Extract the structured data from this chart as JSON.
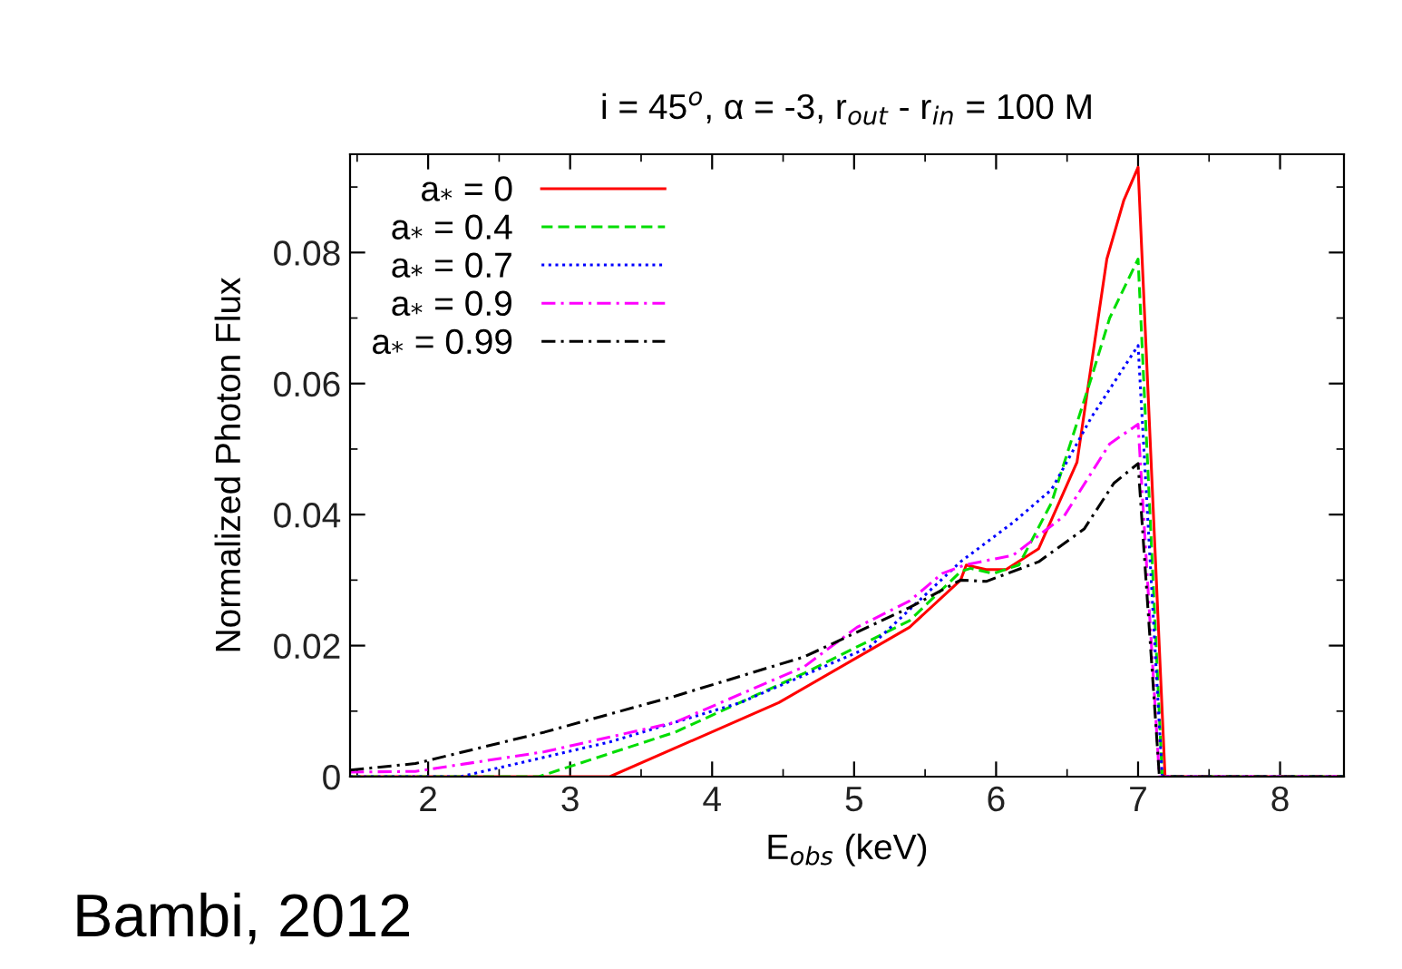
{
  "chart_data": {
    "type": "line",
    "title": "i = 45$^{o}$, α = -3, r$_{out}$ - r$_{in}$ = 100 M",
    "xlabel": "E$_{obs}$ (keV)",
    "ylabel": "Normalized Photon Flux",
    "xlim": [
      1.45,
      8.45
    ],
    "xticks": [
      2,
      3,
      4,
      5,
      6,
      7,
      8
    ],
    "ylim": [
      0,
      0.095
    ],
    "yticks": [
      {
        "value": 0,
        "label": "0"
      },
      0.02,
      0.04,
      0.06,
      0.08
    ],
    "grid": false,
    "legend": "top left",
    "annotations": [
      "Bambi, 2012"
    ],
    "series": [
      {
        "name": "a$_{*}$ = 0",
        "color": "#ff0000",
        "line_style": "solid",
        "x": [
          1.45,
          3.28,
          4.47,
          5.39,
          5.75,
          5.79,
          5.93,
          6.07,
          6.3,
          6.57,
          6.78,
          6.9,
          7.0,
          7.19,
          8.45
        ],
        "values": [
          0,
          0,
          0.0113,
          0.0228,
          0.03,
          0.0323,
          0.0316,
          0.0316,
          0.0348,
          0.048,
          0.079,
          0.088,
          0.093,
          0,
          0
        ]
      },
      {
        "name": "a$_{*}$ = 0.4",
        "color": "#00dd00",
        "line_style": "dashed",
        "x": [
          1.45,
          2.78,
          3.74,
          4.65,
          5.39,
          5.75,
          5.82,
          5.98,
          6.16,
          6.39,
          6.67,
          6.8,
          7.0,
          7.17,
          8.45
        ],
        "values": [
          0,
          0,
          0.0068,
          0.0158,
          0.0238,
          0.0313,
          0.0318,
          0.031,
          0.0323,
          0.0418,
          0.0608,
          0.07,
          0.079,
          0,
          0
        ]
      },
      {
        "name": "a$_{*}$ = 0.7",
        "color": "#0000ff",
        "line_style": "dotted",
        "x": [
          1.45,
          2.23,
          3.28,
          4.2,
          5.11,
          5.75,
          6.12,
          6.39,
          6.67,
          7.0,
          7.17,
          8.45
        ],
        "values": [
          0,
          0,
          0.0053,
          0.0113,
          0.0198,
          0.0328,
          0.0388,
          0.0438,
          0.0548,
          0.0658,
          0,
          0
        ]
      },
      {
        "name": "a$_{*}$ = 0.9",
        "color": "#ff00ff",
        "line_style": "dashdot",
        "x": [
          1.45,
          1.91,
          2.82,
          3.74,
          4.65,
          5.02,
          5.39,
          5.62,
          5.78,
          5.89,
          6.12,
          6.48,
          6.8,
          7.0,
          7.15,
          8.45
        ],
        "values": [
          0.0007,
          0.0008,
          0.0038,
          0.0083,
          0.0168,
          0.0228,
          0.0268,
          0.031,
          0.0323,
          0.0328,
          0.0338,
          0.0398,
          0.0508,
          0.0538,
          0,
          0
        ]
      },
      {
        "name": "a$_{*}$ = 0.99",
        "color": "#000000",
        "line_style": "dashdot",
        "x": [
          1.45,
          1.91,
          2.82,
          3.74,
          4.65,
          5.39,
          5.75,
          5.93,
          6.3,
          6.62,
          6.83,
          7.0,
          7.15,
          8.45
        ],
        "values": [
          0.001,
          0.002,
          0.0068,
          0.0123,
          0.0183,
          0.0258,
          0.03,
          0.0298,
          0.0328,
          0.0378,
          0.0448,
          0.0478,
          0,
          0
        ]
      }
    ]
  }
}
